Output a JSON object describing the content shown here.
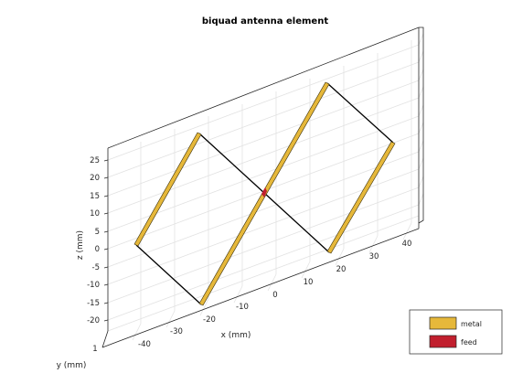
{
  "title": "biquad antenna element",
  "axes": {
    "xlabel": "x (mm)",
    "ylabel": "y (mm)",
    "zlabel": "z (mm)",
    "x_ticks": [
      "-40",
      "-30",
      "-20",
      "-10",
      "0",
      "10",
      "20",
      "30",
      "40"
    ],
    "z_ticks": [
      "25",
      "20",
      "15",
      "10",
      "5",
      "0",
      "-5",
      "-10",
      "-15",
      "-20"
    ],
    "y_tick_partial": "1",
    "grid": true
  },
  "legend": {
    "placement": "bottom-right",
    "items": [
      {
        "label": "metal",
        "color": "#e6b83a"
      },
      {
        "label": "feed",
        "color": "#c11f2e"
      }
    ]
  },
  "colors": {
    "metal": "#e6b83a",
    "metal_edge": "#3a2e08",
    "feed": "#c11f2e"
  }
}
